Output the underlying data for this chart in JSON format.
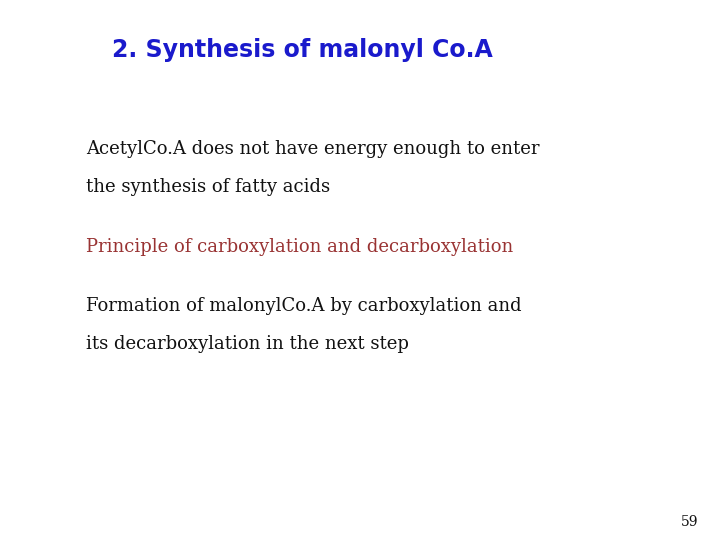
{
  "title": "2. Synthesis of malonyl Co.A",
  "title_color": "#1a1acc",
  "title_fontsize": 17,
  "background_color": "#ffffff",
  "line1": "AcetylCo.A does not have energy enough to enter",
  "line2": "the synthesis of fatty acids",
  "line3": "Principle of carboxylation and decarboxylation",
  "line4": "Formation of malonylCo.A by carboxylation and",
  "line5": "its decarboxylation in the next step",
  "line1_color": "#111111",
  "line2_color": "#111111",
  "line3_color": "#993333",
  "line4_color": "#111111",
  "line5_color": "#111111",
  "body_fontsize": 13,
  "page_number": "59",
  "title_font": "Arial",
  "body_font": "DejaVu Serif"
}
